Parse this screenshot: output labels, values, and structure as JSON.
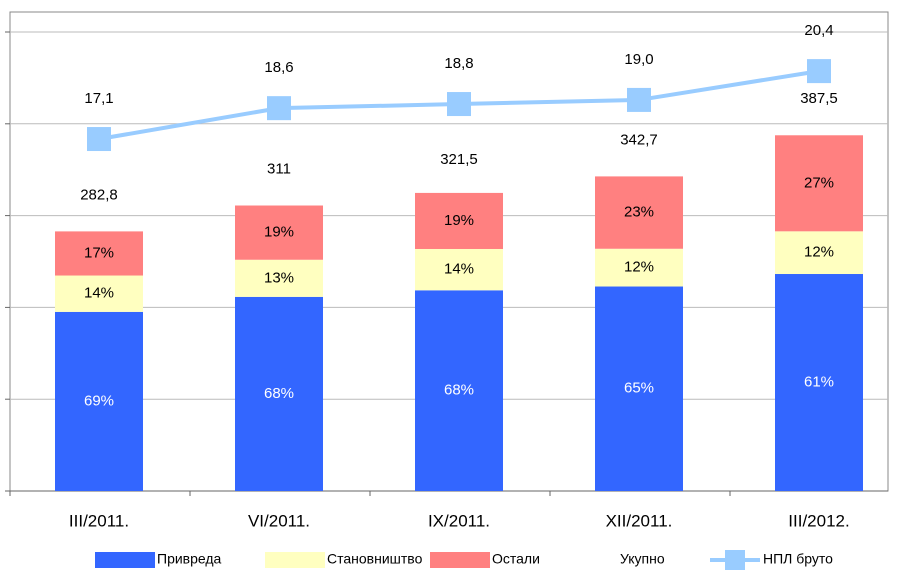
{
  "chart_data": {
    "type": "bar",
    "categories": [
      "III/2011.",
      "VI/2011.",
      "IX/2011.",
      "XII/2011.",
      "III/2012."
    ],
    "ylim": [
      0,
      500
    ],
    "yticks": [
      0,
      100,
      200,
      300,
      400,
      500
    ],
    "grid": true,
    "y2lim": [
      0,
      22.3
    ],
    "legend": "bottom",
    "series": [
      {
        "name": "Привреда",
        "type": "bar",
        "color": "#3366ff",
        "values": [
          69,
          68,
          68,
          65,
          61
        ],
        "value_labels": [
          "69%",
          "68%",
          "68%",
          "65%",
          "61%"
        ]
      },
      {
        "name": "Становништво",
        "type": "bar",
        "color": "#ffffc0",
        "values": [
          14,
          13,
          14,
          12,
          12
        ],
        "value_labels": [
          "14%",
          "13%",
          "14%",
          "12%",
          "12%"
        ]
      },
      {
        "name": "Остали",
        "type": "bar",
        "color": "#ff8080",
        "values": [
          17,
          19,
          19,
          23,
          27
        ],
        "value_labels": [
          "17%",
          "19%",
          "19%",
          "23%",
          "27%"
        ]
      },
      {
        "name": "Укупно",
        "type": "total",
        "values": [
          282.8,
          311,
          321.5,
          342.7,
          387.5
        ],
        "value_labels": [
          "282,8",
          "311",
          "321,5",
          "342,7",
          "387,5"
        ]
      },
      {
        "name": "НПЛ бруто",
        "type": "line",
        "axis": "y2",
        "color": "#99ccff",
        "values": [
          17.1,
          18.6,
          18.8,
          19.0,
          20.4
        ],
        "value_labels": [
          "17,1",
          "18,6",
          "18,8",
          "19,0",
          "20,4"
        ]
      }
    ]
  }
}
